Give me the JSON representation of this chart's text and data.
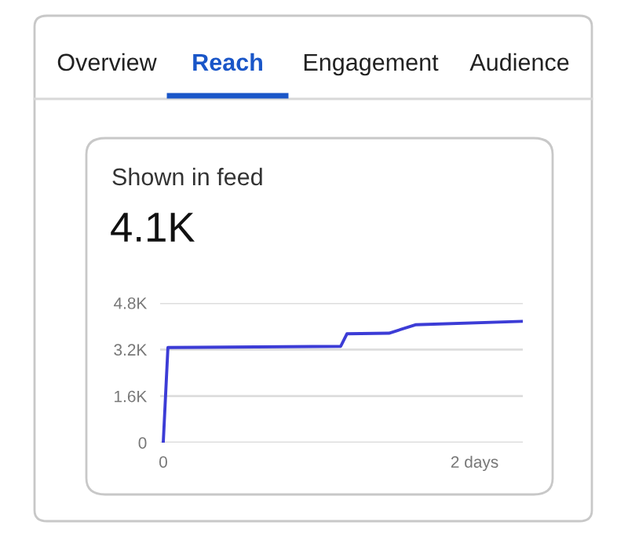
{
  "chart_data": {
    "type": "line",
    "title": "Shown in feed",
    "subtitle": "4.1K",
    "annotations": [
      "Overview",
      "Reach",
      "Engagement",
      "Audience"
    ],
    "x": [
      0,
      0.03,
      1.14,
      1.18,
      1.45,
      1.62,
      2.31
    ],
    "series": [
      {
        "color": "#3c3cd6",
        "values": [
          0,
          3270,
          3310,
          3740,
          3760,
          4050,
          4170
        ]
      }
    ],
    "xlim": [
      -0.02,
      2.31
    ],
    "xticks": [
      0,
      {
        "value": 2,
        "label": "2 days"
      }
    ],
    "ylim": [
      0,
      4800
    ],
    "yticks": [
      0,
      {
        "value": 1600,
        "label": "1.6K"
      },
      {
        "value": 3200,
        "label": "3.2K"
      },
      {
        "value": 4800,
        "label": "4.8K"
      }
    ],
    "grid": "y",
    "marker": "none",
    "line_style": "solid"
  }
}
